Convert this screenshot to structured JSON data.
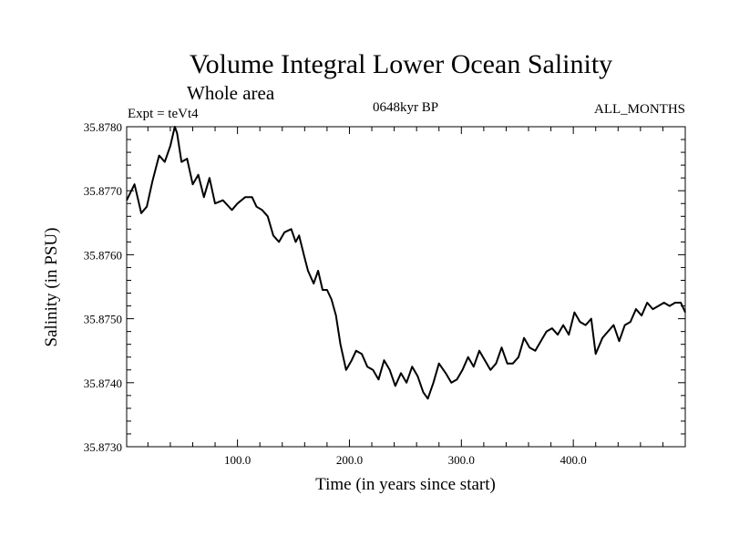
{
  "chart_data": {
    "type": "line",
    "title": "Volume Integral Lower Ocean Salinity",
    "subtitle": "Whole area",
    "header_left": "Expt = teVt4",
    "header_center": "0648kyr BP",
    "header_right": "ALL_MONTHS",
    "xlabel": "Time (in years since start)",
    "ylabel": "Salinity (in PSU)",
    "xlim": [
      1,
      500
    ],
    "ylim": [
      35.873,
      35.878
    ],
    "x_ticks": [
      100,
      200,
      300,
      400
    ],
    "x_tick_labels": [
      "100.0",
      "200.0",
      "300.0",
      "400.0"
    ],
    "y_ticks": [
      35.873,
      35.874,
      35.875,
      35.876,
      35.877,
      35.878
    ],
    "y_tick_labels": [
      "35.8730",
      "35.8740",
      "35.8750",
      "35.8760",
      "35.8770",
      "35.8780"
    ],
    "grid": false,
    "line_color": "#000000",
    "series": [
      {
        "x": [
          1,
          8,
          10,
          14,
          19,
          24,
          30,
          35,
          40,
          44,
          46,
          50,
          55,
          60,
          65,
          70,
          75,
          80,
          87,
          95,
          100,
          107,
          113,
          117,
          122,
          127,
          132,
          137,
          142,
          148,
          152,
          155,
          160,
          163,
          168,
          172,
          176,
          180,
          184,
          188,
          192,
          197,
          202,
          206,
          211,
          216,
          221,
          226,
          231,
          236,
          241,
          246,
          251,
          256,
          261,
          266,
          270,
          275,
          280,
          286,
          291,
          296,
          301,
          306,
          311,
          316,
          321,
          326,
          331,
          336,
          341,
          346,
          351,
          356,
          361,
          366,
          371,
          376,
          381,
          386,
          391,
          396,
          401,
          406,
          411,
          416,
          420,
          426,
          431,
          436,
          441,
          446,
          451,
          456,
          461,
          466,
          471,
          476,
          481,
          486,
          491,
          496,
          500
        ],
        "y": [
          35.87685,
          35.8771,
          35.87695,
          35.87665,
          35.87675,
          35.87715,
          35.87755,
          35.87745,
          35.8777,
          35.878,
          35.8779,
          35.87745,
          35.8775,
          35.8771,
          35.87725,
          35.8769,
          35.8772,
          35.8768,
          35.87685,
          35.8767,
          35.8768,
          35.8769,
          35.8769,
          35.87675,
          35.8767,
          35.8766,
          35.8763,
          35.8762,
          35.87635,
          35.8764,
          35.8762,
          35.8763,
          35.87595,
          35.87575,
          35.87555,
          35.87575,
          35.87545,
          35.87545,
          35.8753,
          35.87505,
          35.8746,
          35.8742,
          35.87435,
          35.8745,
          35.87445,
          35.87425,
          35.8742,
          35.87405,
          35.87435,
          35.8742,
          35.87395,
          35.87415,
          35.874,
          35.87425,
          35.8741,
          35.87385,
          35.87375,
          35.874,
          35.8743,
          35.87415,
          35.874,
          35.87405,
          35.8742,
          35.8744,
          35.87425,
          35.8745,
          35.87435,
          35.8742,
          35.8743,
          35.87455,
          35.8743,
          35.8743,
          35.8744,
          35.8747,
          35.87455,
          35.8745,
          35.87465,
          35.8748,
          35.87485,
          35.87475,
          35.8749,
          35.87475,
          35.8751,
          35.87495,
          35.8749,
          35.875,
          35.87445,
          35.8747,
          35.8748,
          35.8749,
          35.87465,
          35.8749,
          35.87495,
          35.87515,
          35.87505,
          35.87525,
          35.87515,
          35.8752,
          35.87525,
          35.8752,
          35.87525,
          35.87525,
          35.8751
        ]
      }
    ]
  }
}
